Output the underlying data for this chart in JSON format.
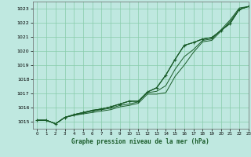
{
  "title": "Graphe pression niveau de la mer (hPa)",
  "bg_color": "#bfe8e0",
  "grid_color": "#88ccaa",
  "line_color": "#1a5c2a",
  "xlim": [
    -0.5,
    23
  ],
  "ylim": [
    1014.5,
    1023.5
  ],
  "yticks": [
    1015,
    1016,
    1017,
    1018,
    1019,
    1020,
    1021,
    1022,
    1023
  ],
  "xticks": [
    0,
    1,
    2,
    3,
    4,
    5,
    6,
    7,
    8,
    9,
    10,
    11,
    12,
    13,
    14,
    15,
    16,
    17,
    18,
    19,
    20,
    21,
    22,
    23
  ],
  "series": [
    [
      1015.1,
      1015.1,
      1014.85,
      1015.3,
      1015.45,
      1015.55,
      1015.65,
      1015.75,
      1015.85,
      1016.05,
      1016.15,
      1016.3,
      1016.95,
      1016.95,
      1017.05,
      1018.2,
      1019.0,
      1019.9,
      1020.65,
      1020.75,
      1021.4,
      1022.1,
      1022.95,
      1023.15
    ],
    [
      1015.1,
      1015.1,
      1014.85,
      1015.3,
      1015.45,
      1015.6,
      1015.75,
      1015.85,
      1015.95,
      1016.15,
      1016.25,
      1016.4,
      1017.05,
      1017.15,
      1017.55,
      1018.7,
      1019.6,
      1020.1,
      1020.75,
      1020.85,
      1021.5,
      1022.2,
      1023.05,
      1023.15
    ],
    [
      1015.1,
      1015.1,
      1014.85,
      1015.3,
      1015.5,
      1015.65,
      1015.8,
      1015.9,
      1016.05,
      1016.25,
      1016.45,
      1016.45,
      1017.1,
      1017.4,
      1018.3,
      1019.4,
      1020.4,
      1020.6,
      1020.85,
      1020.95,
      1021.45,
      1021.95,
      1022.95,
      1023.15
    ],
    [
      1015.1,
      1015.1,
      1014.85,
      1015.3,
      1015.5,
      1015.65,
      1015.8,
      1015.9,
      1016.05,
      1016.25,
      1016.45,
      1016.45,
      1017.1,
      1017.4,
      1018.3,
      1019.4,
      1020.4,
      1020.6,
      1020.85,
      1020.95,
      1021.45,
      1021.95,
      1022.95,
      1023.15
    ]
  ],
  "xlabel_fontsize": 5.5,
  "tick_fontsize": 4.5,
  "figsize": [
    3.2,
    2.0
  ],
  "dpi": 100
}
